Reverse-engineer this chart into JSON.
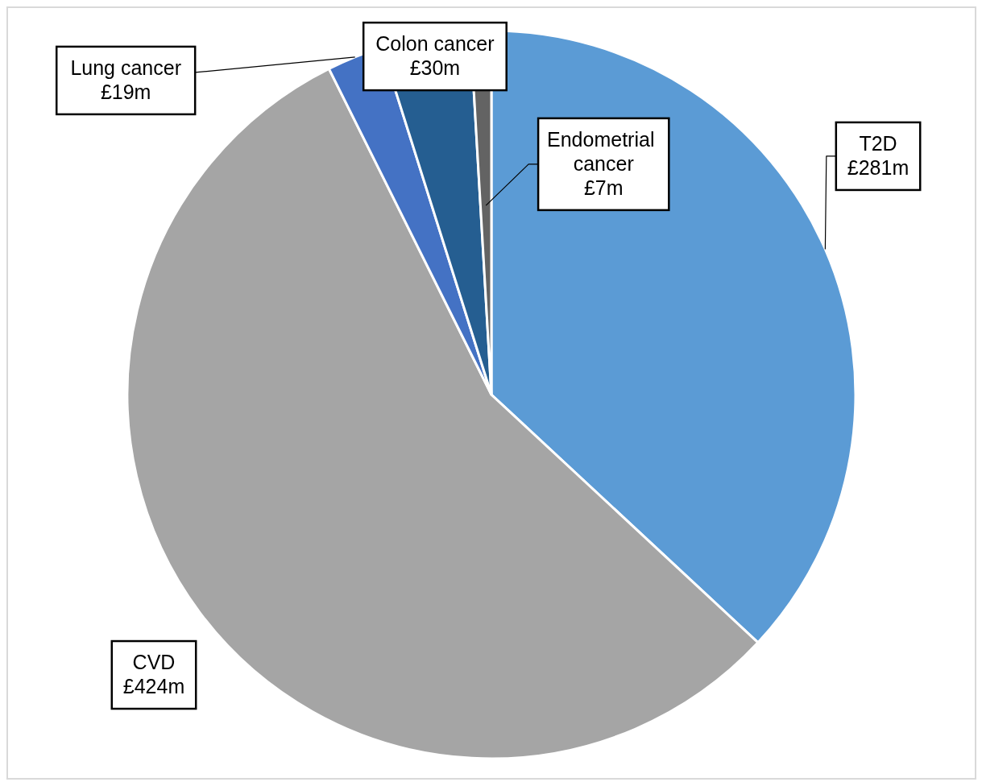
{
  "chart_data": {
    "type": "pie",
    "categories": [
      "T2D",
      "CVD",
      "Lung cancer",
      "Colon cancer",
      "Endometrial cancer"
    ],
    "values": [
      281,
      424,
      19,
      30,
      7
    ],
    "colors": [
      "#5b9bd5",
      "#a5a5a5",
      "#4472c4",
      "#255e91",
      "#636363"
    ],
    "value_labels": [
      "£281m",
      "£424m",
      "£19m",
      "£30m",
      "£7m"
    ]
  }
}
